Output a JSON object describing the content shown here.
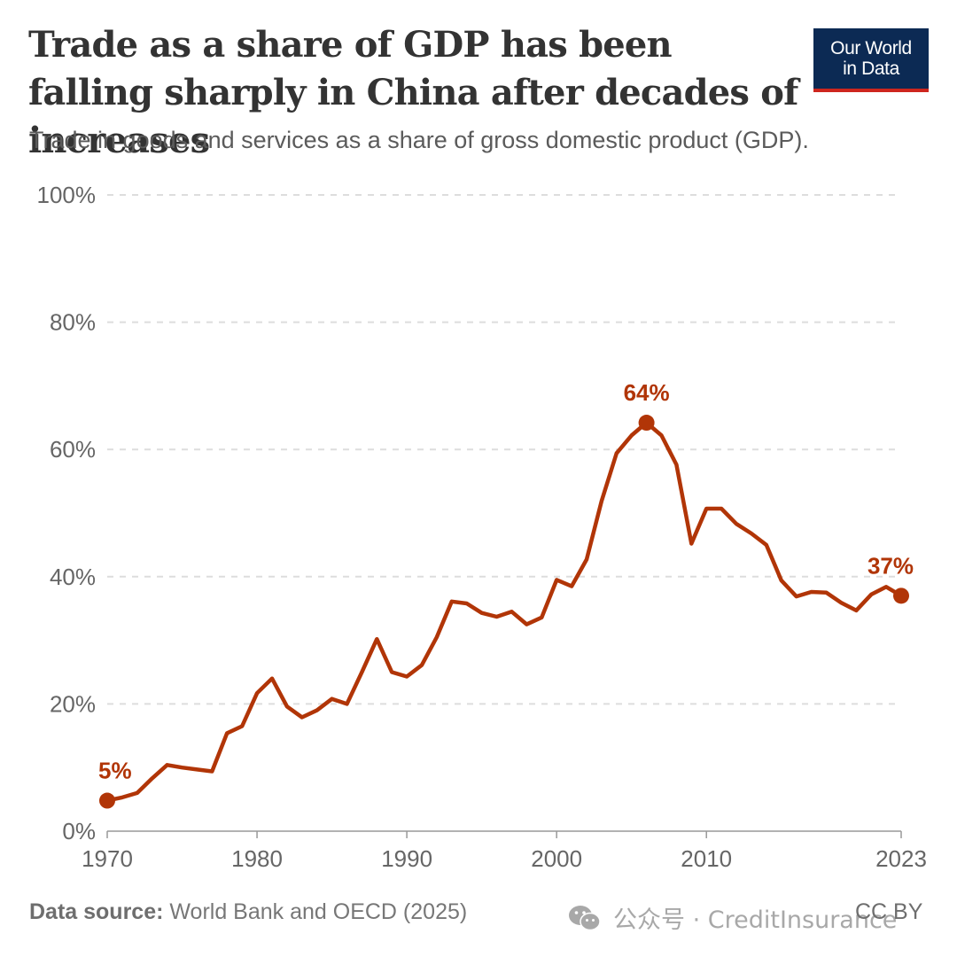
{
  "header": {
    "title": "Trade as a share of GDP has been falling sharply in China after decades of increases",
    "subtitle": "Trade in goods and services as a share of gross domestic product (GDP).",
    "logo_line1": "Our World",
    "logo_line2": "in Data"
  },
  "footer": {
    "source_label": "Data source:",
    "source_text": " World Bank and OECD (2025)",
    "license": "CC BY",
    "watermark": "公众号 · CreditInsurance"
  },
  "colors": {
    "line": "#b13507",
    "grid": "#dddddd",
    "logo_bg": "#0c2a54",
    "logo_bar": "#ce261e"
  },
  "icons": {
    "watermark": "wechat-icon"
  },
  "chart_data": {
    "type": "line",
    "x_ticks": [
      "1970",
      "1980",
      "1990",
      "2000",
      "2010",
      "2023"
    ],
    "y_ticks": [
      "0%",
      "20%",
      "40%",
      "60%",
      "80%",
      "100%"
    ],
    "xlim": [
      1970,
      2023
    ],
    "ylim": [
      0,
      100
    ],
    "grid": true,
    "series": [
      {
        "x": [
          1970,
          1971,
          1972,
          1973,
          1974,
          1975,
          1976,
          1977,
          1978,
          1979,
          1980,
          1981,
          1982,
          1983,
          1984,
          1985,
          1986,
          1987,
          1988,
          1989,
          1990,
          1991,
          1992,
          1993,
          1994,
          1995,
          1996,
          1997,
          1998,
          1999,
          2000,
          2001,
          2002,
          2003,
          2004,
          2005,
          2006,
          2007,
          2008,
          2009,
          2010,
          2011,
          2012,
          2013,
          2014,
          2015,
          2016,
          2017,
          2018,
          2019,
          2020,
          2021,
          2022,
          2023
        ],
        "values": [
          4.8,
          5.3,
          6.0,
          8.3,
          10.4,
          10.0,
          9.7,
          9.4,
          15.4,
          16.5,
          21.7,
          24.0,
          19.6,
          17.9,
          19.0,
          20.8,
          20.0,
          25.0,
          30.2,
          25.0,
          24.3,
          26.1,
          30.5,
          36.1,
          35.8,
          34.3,
          33.7,
          34.5,
          32.5,
          33.6,
          39.5,
          38.5,
          42.7,
          51.9,
          59.4,
          62.2,
          64.2,
          62.2,
          57.6,
          45.2,
          50.7,
          50.7,
          48.3,
          46.8,
          45.0,
          39.4,
          36.9,
          37.6,
          37.5,
          35.9,
          34.7,
          37.2,
          38.4,
          37.0
        ]
      }
    ],
    "annotations": [
      {
        "x": 1970,
        "y": 4.8,
        "text": "5%"
      },
      {
        "x": 2006,
        "y": 64.2,
        "text": "64%"
      },
      {
        "x": 2023,
        "y": 37.0,
        "text": "37%"
      }
    ]
  }
}
